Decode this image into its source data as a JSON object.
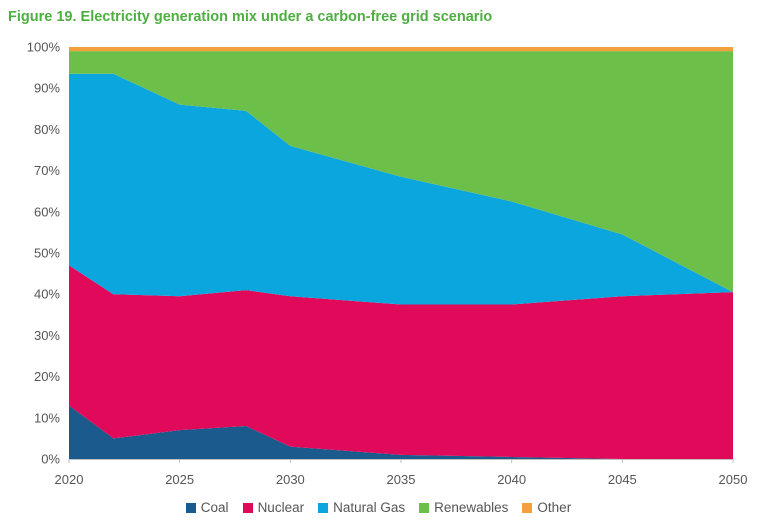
{
  "chart_data": {
    "type": "area",
    "stacked": true,
    "title": "Figure 19. Electricity generation mix under a carbon-free grid scenario",
    "x": [
      2020,
      2022,
      2025,
      2028,
      2030,
      2035,
      2040,
      2045,
      2050
    ],
    "x_ticks": [
      2020,
      2025,
      2030,
      2035,
      2040,
      2045,
      2050
    ],
    "y_ticks": [
      "0%",
      "10%",
      "20%",
      "30%",
      "40%",
      "50%",
      "60%",
      "70%",
      "80%",
      "90%",
      "100%"
    ],
    "ylim": [
      0,
      100
    ],
    "xlim": [
      2020,
      2050
    ],
    "grid": false,
    "legend_position": "bottom",
    "series": [
      {
        "name": "Coal",
        "color": "#1b5a8c",
        "values": [
          13,
          5,
          7,
          8,
          3,
          1,
          0.5,
          0,
          0
        ]
      },
      {
        "name": "Nuclear",
        "color": "#e0095a",
        "values": [
          34,
          35,
          32.5,
          33,
          36.5,
          36.5,
          37,
          39.5,
          40.5
        ]
      },
      {
        "name": "Natural Gas",
        "color": "#0ca6df",
        "values": [
          46.5,
          53.5,
          46.5,
          43.5,
          36.5,
          31,
          25,
          15,
          0
        ]
      },
      {
        "name": "Renewables",
        "color": "#6cc04a",
        "values": [
          5.5,
          5.5,
          13,
          14.5,
          23,
          30.5,
          36.5,
          44.5,
          58.5
        ]
      },
      {
        "name": "Other",
        "color": "#f2a03c",
        "values": [
          1,
          1,
          1,
          1,
          1,
          1,
          1,
          1,
          1
        ]
      }
    ]
  }
}
